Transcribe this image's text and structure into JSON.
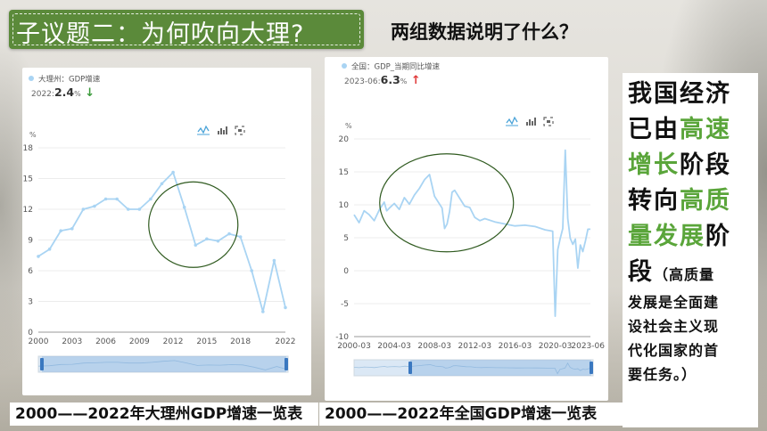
{
  "slide": {
    "title": "子议题二：为何吹向大理?",
    "question": "两组数据说明了什么？",
    "conclusion": {
      "line1": "我国经济",
      "line2_a": "已由",
      "line2_b": "高速",
      "line3_a": "增长",
      "line3_b": "阶段",
      "line4_a": "转向",
      "line4_b": "高质",
      "line5_a": "量发展",
      "line5_b": "阶",
      "line6_a": "段",
      "note1": "（高质量",
      "note2": "发展是全面建",
      "note3": "设社会主义现",
      "note4": "代化国家的首",
      "note5": "要任务。）"
    },
    "caption_left": "2000——2022年大理州GDP增速一览表",
    "caption_right": "2000——2022年全国GDP增速一览表"
  },
  "colors": {
    "banner": "#5b8a3a",
    "highlight_text": "#5aa53a",
    "line": "#a9d4f3",
    "circle": "#2f5a1f",
    "down_arrow": "#3a9a3a",
    "up_arrow": "#e03a3a"
  },
  "chart_data": [
    {
      "type": "line",
      "legend": "大理州：GDP增速",
      "readout_label": "2022:",
      "readout_value": "2.4",
      "readout_unit": "%",
      "readout_arrow": "↓",
      "ylabel": "%",
      "ylim": [
        0,
        18
      ],
      "yticks": [
        "0",
        "3",
        "6",
        "9",
        "12",
        "15",
        "18"
      ],
      "xticks": [
        "2000",
        "2003",
        "2006",
        "2009",
        "2012",
        "2015",
        "2018",
        "2022"
      ],
      "xlim": [
        2000,
        2022
      ],
      "x": [
        2000,
        2001,
        2002,
        2003,
        2004,
        2005,
        2006,
        2007,
        2008,
        2009,
        2010,
        2011,
        2012,
        2013,
        2014,
        2015,
        2016,
        2017,
        2018,
        2019,
        2020,
        2021,
        2022
      ],
      "values": [
        7.4,
        8.1,
        9.9,
        10.1,
        12.0,
        12.3,
        13.0,
        13.0,
        12.0,
        12.0,
        13.0,
        14.5,
        15.6,
        12.2,
        8.5,
        9.1,
        8.9,
        9.6,
        9.3,
        6.0,
        2.0,
        7.0,
        2.4
      ],
      "annotation_circle_center": [
        2013.8,
        10.5
      ]
    },
    {
      "type": "line",
      "legend": "全国：GDP_当期同比增速",
      "readout_label": "2023-06:",
      "readout_value": "6.3",
      "readout_unit": "%",
      "readout_arrow": "↑",
      "ylabel": "%",
      "ylim": [
        -10,
        20
      ],
      "yticks": [
        "-10",
        "-5",
        "0",
        "5",
        "10",
        "15",
        "20"
      ],
      "xticks": [
        "2000-03",
        "2004-03",
        "2008-03",
        "2012-03",
        "2016-03",
        "2020-03",
        "2023-06"
      ],
      "xlim": [
        2000.0,
        2023.5
      ],
      "x": [
        2000.0,
        2000.5,
        2001.0,
        2001.5,
        2002.0,
        2002.5,
        2003.0,
        2003.25,
        2003.5,
        2004.0,
        2004.5,
        2005.0,
        2005.5,
        2006.0,
        2006.5,
        2007.0,
        2007.25,
        2007.5,
        2008.0,
        2008.5,
        2008.75,
        2009.0,
        2009.25,
        2009.5,
        2009.75,
        2010.0,
        2010.5,
        2011.0,
        2011.5,
        2012.0,
        2012.5,
        2013.0,
        2014.0,
        2015.0,
        2016.0,
        2017.0,
        2018.0,
        2019.0,
        2019.75,
        2020.0,
        2020.25,
        2020.5,
        2020.75,
        2021.0,
        2021.25,
        2021.5,
        2021.75,
        2022.0,
        2022.25,
        2022.5,
        2022.75,
        2023.0,
        2023.25,
        2023.5
      ],
      "values": [
        8.5,
        7.3,
        9.1,
        8.5,
        7.6,
        9.2,
        10.4,
        9.1,
        9.5,
        10.2,
        9.3,
        11.1,
        10.1,
        11.5,
        12.5,
        13.8,
        14.2,
        14.6,
        11.3,
        10.1,
        9.5,
        6.4,
        7.1,
        9.0,
        11.9,
        12.2,
        11.0,
        9.8,
        9.6,
        8.1,
        7.6,
        7.9,
        7.4,
        7.1,
        6.8,
        6.9,
        6.7,
        6.2,
        6.0,
        -6.9,
        3.2,
        4.9,
        6.4,
        18.3,
        7.9,
        4.9,
        4.0,
        4.8,
        0.4,
        3.9,
        2.9,
        4.5,
        6.3,
        6.3
      ],
      "annotation_circle_center": [
        2009.2,
        10.3
      ]
    }
  ]
}
